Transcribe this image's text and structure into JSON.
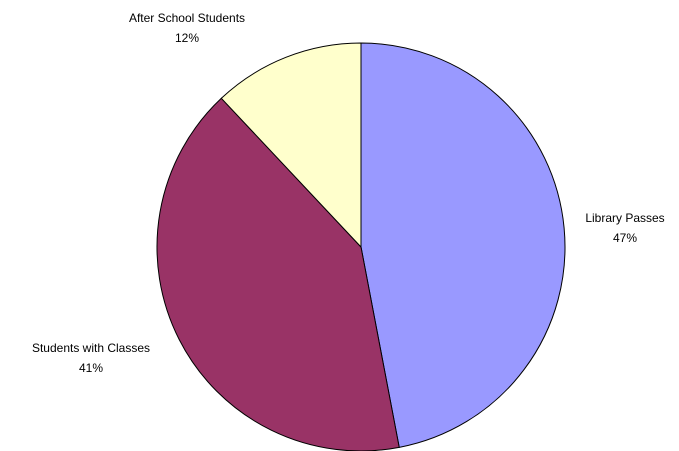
{
  "chart_data": {
    "type": "pie",
    "categories": [
      "Library Passes",
      "Students with Classes",
      "After School Students"
    ],
    "values": [
      47,
      41,
      12
    ],
    "value_labels": [
      "47%",
      "41%",
      "12%"
    ],
    "colors": [
      "#9999ff",
      "#993366",
      "#ffffcc"
    ]
  }
}
